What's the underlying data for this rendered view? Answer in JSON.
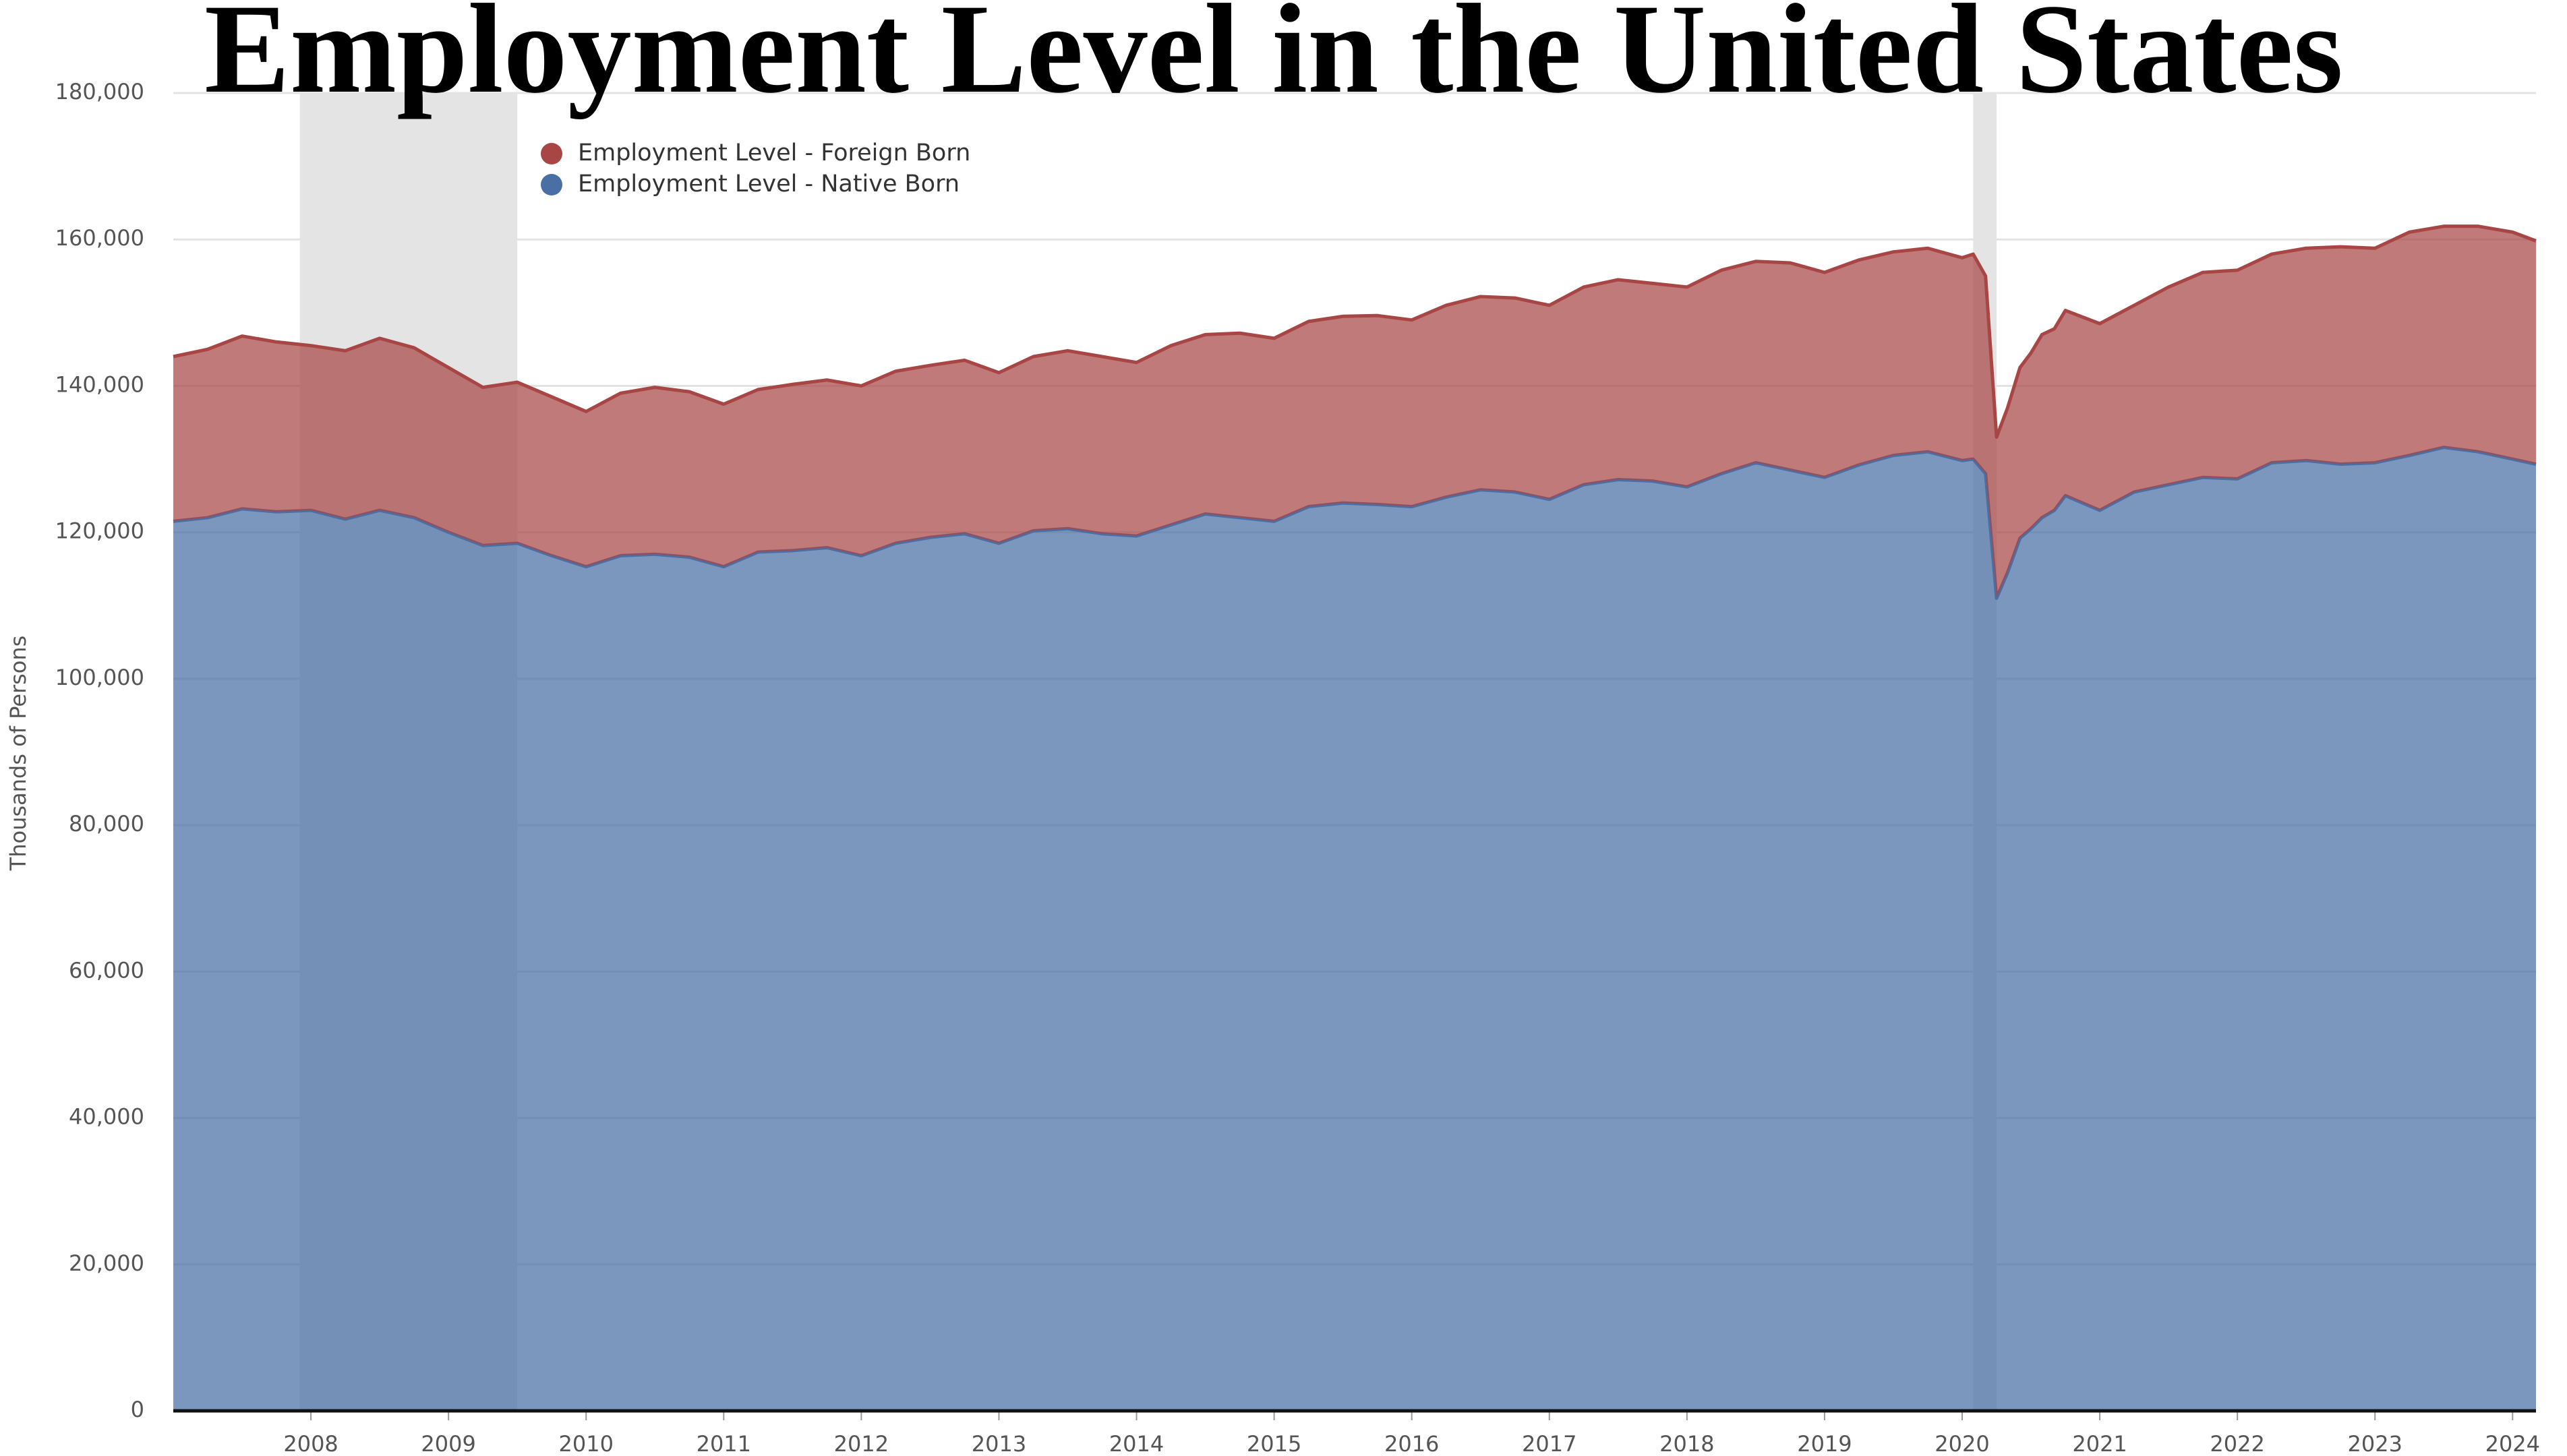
{
  "chart_data": {
    "type": "stacked-area",
    "title": "Employment Level in the United States",
    "y_label": "Thousands of Persons",
    "x": [
      2007.0,
      2007.25,
      2007.5,
      2007.75,
      2008.0,
      2008.25,
      2008.5,
      2008.75,
      2009.0,
      2009.25,
      2009.5,
      2009.75,
      2010.0,
      2010.25,
      2010.5,
      2010.75,
      2011.0,
      2011.25,
      2011.5,
      2011.75,
      2012.0,
      2012.25,
      2012.5,
      2012.75,
      2013.0,
      2013.25,
      2013.5,
      2013.75,
      2014.0,
      2014.25,
      2014.5,
      2014.75,
      2015.0,
      2015.25,
      2015.5,
      2015.75,
      2016.0,
      2016.25,
      2016.5,
      2016.75,
      2017.0,
      2017.25,
      2017.5,
      2017.75,
      2018.0,
      2018.25,
      2018.5,
      2018.75,
      2019.0,
      2019.25,
      2019.5,
      2019.75,
      2020.0,
      2020.08,
      2020.17,
      2020.25,
      2020.33,
      2020.42,
      2020.5,
      2020.58,
      2020.67,
      2020.75,
      2021.0,
      2021.25,
      2021.5,
      2021.75,
      2022.0,
      2022.25,
      2022.5,
      2022.75,
      2023.0,
      2023.25,
      2023.5,
      2023.75,
      2024.0,
      2024.17
    ],
    "series": [
      {
        "name": "Employment Level - Native Born",
        "color": "#4a6fa5",
        "values": [
          121500,
          122000,
          123200,
          122800,
          123000,
          121800,
          123000,
          122000,
          120000,
          118200,
          118500,
          116800,
          115300,
          116800,
          117000,
          116600,
          115300,
          117300,
          117500,
          117900,
          116800,
          118500,
          119300,
          119800,
          118500,
          120200,
          120500,
          119800,
          119500,
          121000,
          122500,
          122000,
          121500,
          123500,
          124000,
          123800,
          123500,
          124800,
          125800,
          125500,
          124500,
          126500,
          127200,
          127000,
          126200,
          128000,
          129500,
          128500,
          127500,
          129200,
          130500,
          131000,
          129800,
          130000,
          128000,
          111000,
          114500,
          119200,
          120500,
          122000,
          123000,
          125000,
          123000,
          125500,
          126500,
          127500,
          127300,
          129500,
          129800,
          129300,
          129500,
          130500,
          131600,
          131000,
          130000,
          129300
        ]
      },
      {
        "name": "Employment Level - Foreign Born",
        "color": "#a84646",
        "values": [
          22500,
          23000,
          23600,
          23200,
          22500,
          23000,
          23500,
          23200,
          22500,
          21600,
          22000,
          21700,
          21200,
          22200,
          22800,
          22600,
          22200,
          22200,
          22700,
          22900,
          23200,
          23500,
          23500,
          23700,
          23300,
          23800,
          24300,
          24200,
          23700,
          24500,
          24500,
          25200,
          25000,
          25300,
          25500,
          25800,
          25500,
          26200,
          26400,
          26500,
          26500,
          27000,
          27300,
          27000,
          27300,
          27800,
          27500,
          28300,
          28000,
          28000,
          27800,
          27800,
          27700,
          28000,
          27000,
          22000,
          22500,
          23300,
          24000,
          25000,
          24800,
          25300,
          25500,
          25500,
          27000,
          28000,
          28500,
          28500,
          29000,
          29700,
          29300,
          30500,
          30200,
          30800,
          31000,
          30500
        ]
      }
    ],
    "recessions": [
      [
        2007.92,
        2009.5
      ],
      [
        2020.08,
        2020.25
      ]
    ],
    "xlim": [
      2007.0,
      2024.17
    ],
    "xticks": [
      2008,
      2009,
      2010,
      2011,
      2012,
      2013,
      2014,
      2015,
      2016,
      2017,
      2018,
      2019,
      2020,
      2021,
      2022,
      2023,
      2024
    ],
    "ylim": [
      0,
      180000
    ],
    "yticks": [
      0,
      {
        "value": 20000,
        "label": "20,000"
      },
      {
        "value": 40000,
        "label": "40,000"
      },
      {
        "value": 60000,
        "label": "60,000"
      },
      {
        "value": 80000,
        "label": "80,000"
      },
      {
        "value": 100000,
        "label": "100,000"
      },
      {
        "value": 120000,
        "label": "120,000"
      },
      {
        "value": 140000,
        "label": "140,000"
      },
      {
        "value": 160000,
        "label": "160,000"
      },
      {
        "value": 180000,
        "label": "180,000"
      }
    ],
    "grid": true
  }
}
